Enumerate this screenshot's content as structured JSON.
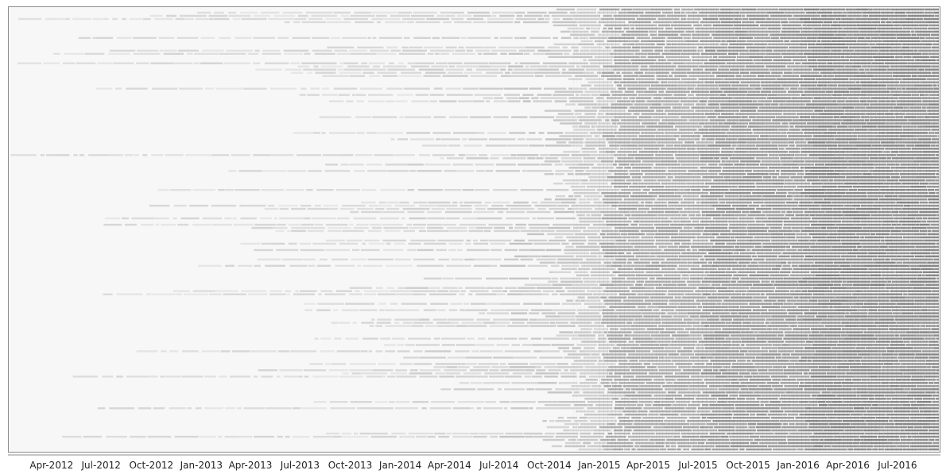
{
  "chart_data": {
    "type": "heatmap",
    "title": "",
    "xlabel": "",
    "ylabel": "",
    "x_axis": {
      "type": "date",
      "range": [
        "2012-01-15",
        "2016-09-15"
      ],
      "tick_labels": [
        "Apr-2012",
        "Jul-2012",
        "Oct-2012",
        "Jan-2013",
        "Apr-2013",
        "Jul-2013",
        "Oct-2013",
        "Jan-2014",
        "Apr-2014",
        "Jul-2014",
        "Oct-2014",
        "Jan-2015",
        "Apr-2015",
        "Jul-2015",
        "Oct-2015",
        "Jan-2016",
        "Apr-2016",
        "Jul-2016"
      ],
      "tick_dates": [
        "2012-04-01",
        "2012-07-01",
        "2012-10-01",
        "2013-01-01",
        "2013-04-01",
        "2013-07-01",
        "2013-10-01",
        "2014-01-01",
        "2014-04-01",
        "2014-07-01",
        "2014-10-01",
        "2015-01-01",
        "2015-04-01",
        "2015-07-01",
        "2015-10-01",
        "2016-01-01",
        "2016-04-01",
        "2016-07-01"
      ]
    },
    "rows_estimated": 140,
    "activity_density_by_period": [
      {
        "period": "Jan-2012 to Dec-2013",
        "density": 0.08
      },
      {
        "period": "Jan-2014 to Jun-2014",
        "density": 0.15
      },
      {
        "period": "Jul-2014 to Dec-2014",
        "density": 0.25
      },
      {
        "period": "Jan-2015 to Jun-2015",
        "density": 0.55
      },
      {
        "period": "Jul-2015 to Dec-2015",
        "density": 0.7
      },
      {
        "period": "Jan-2016 to Sep-2016",
        "density": 0.85
      }
    ],
    "grid": false,
    "legend": "none",
    "colors": {
      "background": "#f7f7f7",
      "mark": "#6e6e6e",
      "frame": "#8c8c8c"
    }
  }
}
